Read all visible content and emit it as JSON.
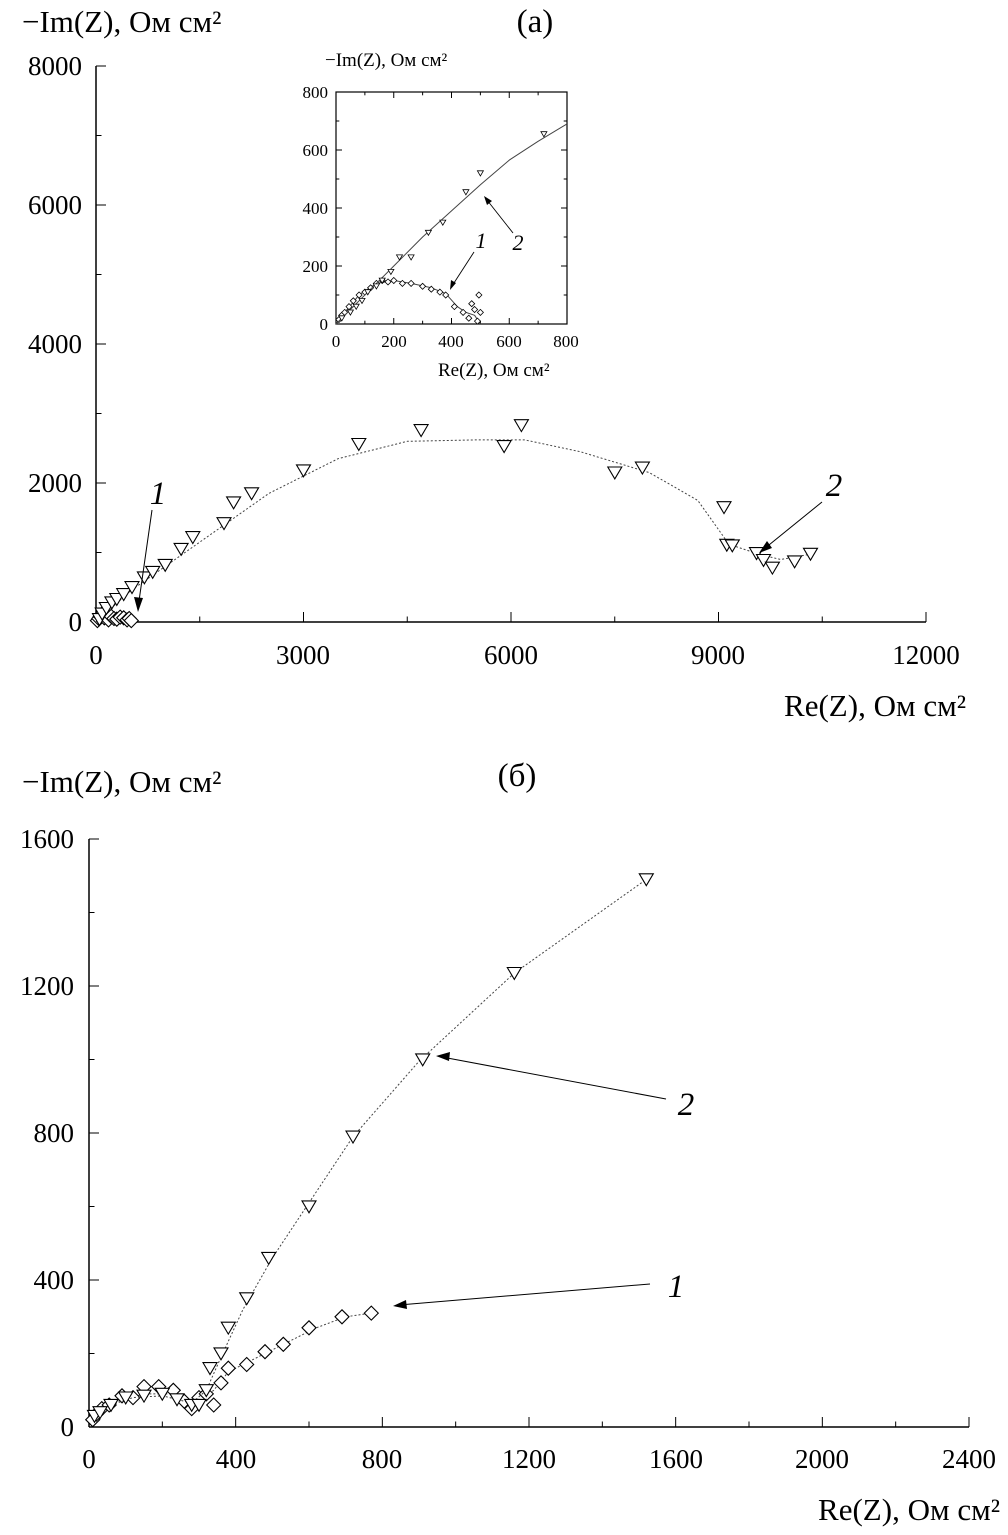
{
  "chart_data": [
    {
      "id": "a",
      "type": "scatter",
      "panel_label": "(а)",
      "ylabel": "−Im(Z), Ом см²",
      "xlabel": "Re(Z), Ом см²",
      "xlim": [
        0,
        12000
      ],
      "ylim": [
        0,
        8000
      ],
      "x_ticks": [
        "0",
        "3000",
        "6000",
        "9000",
        "12000"
      ],
      "y_ticks": [
        "0",
        "2000",
        "4000",
        "6000",
        "8000"
      ],
      "grid": false,
      "series": [
        {
          "label": "1",
          "marker": "diamond",
          "points": [
            [
              20,
              20
            ],
            [
              40,
              50
            ],
            [
              60,
              80
            ],
            [
              80,
              110
            ],
            [
              120,
              60
            ],
            [
              150,
              90
            ],
            [
              180,
              30
            ],
            [
              220,
              80
            ],
            [
              260,
              50
            ],
            [
              300,
              40
            ],
            [
              350,
              70
            ],
            [
              400,
              60
            ],
            [
              450,
              30
            ],
            [
              480,
              50
            ],
            [
              510,
              20
            ]
          ]
        },
        {
          "label": "2",
          "marker": "triangle-down",
          "points": [
            [
              50,
              40
            ],
            [
              90,
              120
            ],
            [
              150,
              200
            ],
            [
              230,
              280
            ],
            [
              300,
              330
            ],
            [
              400,
              400
            ],
            [
              520,
              500
            ],
            [
              700,
              640
            ],
            [
              820,
              720
            ],
            [
              1000,
              820
            ],
            [
              1230,
              1050
            ],
            [
              1400,
              1220
            ],
            [
              1850,
              1420
            ],
            [
              1990,
              1720
            ],
            [
              2250,
              1850
            ],
            [
              3000,
              2180
            ],
            [
              3800,
              2560
            ],
            [
              4700,
              2760
            ],
            [
              5900,
              2530
            ],
            [
              6150,
              2830
            ],
            [
              7500,
              2150
            ],
            [
              7900,
              2220
            ],
            [
              9080,
              1650
            ],
            [
              9120,
              1110
            ],
            [
              9200,
              1100
            ],
            [
              9550,
              990
            ],
            [
              9650,
              890
            ],
            [
              9780,
              780
            ],
            [
              10100,
              870
            ],
            [
              10330,
              980
            ]
          ],
          "fit": [
            [
              0,
              0
            ],
            [
              500,
              450
            ],
            [
              1500,
              1150
            ],
            [
              2500,
              1850
            ],
            [
              3500,
              2350
            ],
            [
              4500,
              2600
            ],
            [
              5500,
              2620
            ],
            [
              6200,
              2620
            ],
            [
              7000,
              2450
            ],
            [
              8000,
              2150
            ],
            [
              8700,
              1750
            ],
            [
              9150,
              1120
            ],
            [
              9600,
              970
            ],
            [
              9900,
              900
            ],
            [
              10300,
              970
            ]
          ]
        }
      ],
      "inset": {
        "type": "scatter",
        "ylabel": "−Im(Z), Ом см²",
        "xlabel": "Re(Z), Ом см²",
        "xlim": [
          0,
          800
        ],
        "ylim": [
          0,
          800
        ],
        "x_ticks": [
          "0",
          "200",
          "400",
          "600",
          "800"
        ],
        "y_ticks": [
          "0",
          "200",
          "400",
          "600",
          "800"
        ],
        "series": [
          {
            "label": "1",
            "marker": "diamond",
            "points": [
              [
                10,
                15
              ],
              [
                20,
                30
              ],
              [
                30,
                40
              ],
              [
                45,
                60
              ],
              [
                60,
                80
              ],
              [
                80,
                100
              ],
              [
                100,
                110
              ],
              [
                120,
                125
              ],
              [
                140,
                140
              ],
              [
                160,
                150
              ],
              [
                180,
                145
              ],
              [
                200,
                150
              ],
              [
                230,
                140
              ],
              [
                260,
                140
              ],
              [
                300,
                130
              ],
              [
                330,
                120
              ],
              [
                360,
                110
              ],
              [
                380,
                100
              ],
              [
                410,
                60
              ],
              [
                440,
                40
              ],
              [
                460,
                20
              ],
              [
                470,
                70
              ],
              [
                480,
                50
              ],
              [
                490,
                10
              ],
              [
                495,
                100
              ],
              [
                500,
                40
              ]
            ],
            "fit": [
              [
                0,
                0
              ],
              [
                30,
                40
              ],
              [
                80,
                100
              ],
              [
                140,
                140
              ],
              [
                200,
                150
              ],
              [
                260,
                140
              ],
              [
                330,
                125
              ],
              [
                380,
                105
              ],
              [
                420,
                60
              ],
              [
                450,
                40
              ],
              [
                480,
                30
              ],
              [
                500,
                0
              ]
            ]
          },
          {
            "label": "2",
            "marker": "triangle-down",
            "points": [
              [
                20,
                20
              ],
              [
                50,
                40
              ],
              [
                70,
                60
              ],
              [
                90,
                80
              ],
              [
                110,
                110
              ],
              [
                140,
                130
              ],
              [
                160,
                150
              ],
              [
                190,
                180
              ],
              [
                220,
                230
              ],
              [
                260,
                230
              ],
              [
                320,
                315
              ],
              [
                370,
                350
              ],
              [
                450,
                455
              ],
              [
                500,
                520
              ],
              [
                720,
                655
              ]
            ],
            "fit": [
              [
                0,
                0
              ],
              [
                60,
                60
              ],
              [
                120,
                120
              ],
              [
                200,
                200
              ],
              [
                300,
                300
              ],
              [
                400,
                390
              ],
              [
                500,
                480
              ],
              [
                600,
                565
              ],
              [
                700,
                630
              ],
              [
                800,
                690
              ]
            ]
          }
        ]
      }
    },
    {
      "id": "b",
      "type": "scatter",
      "panel_label": "(б)",
      "ylabel": "−Im(Z), Ом см²",
      "xlabel": "Re(Z), Ом см²",
      "xlim": [
        0,
        2400
      ],
      "ylim": [
        0,
        1600
      ],
      "x_ticks": [
        "0",
        "400",
        "800",
        "1200",
        "1600",
        "2000",
        "2400"
      ],
      "y_ticks": [
        "0",
        "400",
        "800",
        "1200",
        "1600"
      ],
      "grid": false,
      "series": [
        {
          "label": "1",
          "marker": "diamond",
          "points": [
            [
              10,
              20
            ],
            [
              20,
              35
            ],
            [
              35,
              50
            ],
            [
              55,
              60
            ],
            [
              90,
              85
            ],
            [
              120,
              80
            ],
            [
              150,
              110
            ],
            [
              190,
              110
            ],
            [
              230,
              100
            ],
            [
              260,
              70
            ],
            [
              280,
              50
            ],
            [
              300,
              80
            ],
            [
              320,
              90
            ],
            [
              340,
              60
            ],
            [
              360,
              120
            ],
            [
              380,
              160
            ],
            [
              430,
              170
            ],
            [
              480,
              205
            ],
            [
              530,
              225
            ],
            [
              600,
              270
            ],
            [
              690,
              300
            ],
            [
              770,
              310
            ]
          ],
          "fit": [
            [
              10,
              20
            ],
            [
              50,
              55
            ],
            [
              100,
              80
            ],
            [
              160,
              90
            ],
            [
              220,
              90
            ],
            [
              260,
              70
            ],
            [
              300,
              70
            ],
            [
              340,
              100
            ],
            [
              380,
              150
            ],
            [
              430,
              175
            ],
            [
              530,
              225
            ],
            [
              620,
              270
            ],
            [
              700,
              300
            ],
            [
              770,
              310
            ]
          ]
        },
        {
          "label": "2",
          "marker": "triangle-down",
          "points": [
            [
              15,
              30
            ],
            [
              30,
              40
            ],
            [
              60,
              60
            ],
            [
              100,
              80
            ],
            [
              150,
              85
            ],
            [
              200,
              90
            ],
            [
              240,
              75
            ],
            [
              280,
              60
            ],
            [
              300,
              60
            ],
            [
              320,
              100
            ],
            [
              330,
              160
            ],
            [
              360,
              200
            ],
            [
              380,
              270
            ],
            [
              430,
              350
            ],
            [
              490,
              460
            ],
            [
              600,
              600
            ],
            [
              720,
              790
            ],
            [
              910,
              1000
            ],
            [
              1160,
              1235
            ],
            [
              1520,
              1490
            ]
          ],
          "fit": [
            [
              15,
              30
            ],
            [
              60,
              60
            ],
            [
              120,
              80
            ],
            [
              200,
              85
            ],
            [
              280,
              65
            ],
            [
              320,
              100
            ],
            [
              360,
              190
            ],
            [
              420,
              320
            ],
            [
              500,
              460
            ],
            [
              600,
              610
            ],
            [
              720,
              790
            ],
            [
              900,
              995
            ],
            [
              1160,
              1235
            ],
            [
              1520,
              1490
            ]
          ]
        }
      ]
    }
  ]
}
